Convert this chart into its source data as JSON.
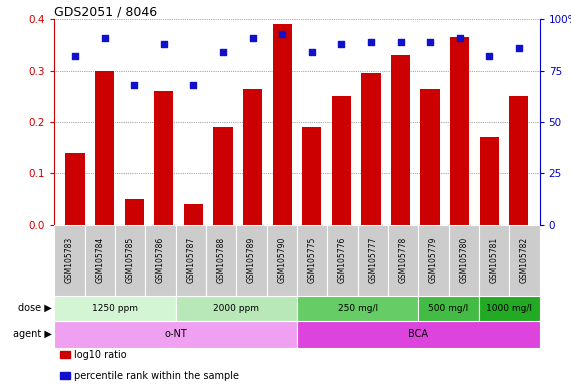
{
  "title": "GDS2051 / 8046",
  "samples": [
    "GSM105783",
    "GSM105784",
    "GSM105785",
    "GSM105786",
    "GSM105787",
    "GSM105788",
    "GSM105789",
    "GSM105790",
    "GSM105775",
    "GSM105776",
    "GSM105777",
    "GSM105778",
    "GSM105779",
    "GSM105780",
    "GSM105781",
    "GSM105782"
  ],
  "log10_ratio": [
    0.14,
    0.3,
    0.05,
    0.26,
    0.04,
    0.19,
    0.265,
    0.39,
    0.19,
    0.25,
    0.295,
    0.33,
    0.265,
    0.365,
    0.17,
    0.25
  ],
  "percentile_rank": [
    82,
    91,
    68,
    88,
    68,
    84,
    91,
    93,
    84,
    88,
    89,
    89,
    89,
    91,
    82,
    86
  ],
  "bar_color": "#cc0000",
  "dot_color": "#1111cc",
  "ylim_left": [
    0,
    0.4
  ],
  "ylim_right": [
    0,
    100
  ],
  "yticks_left": [
    0,
    0.1,
    0.2,
    0.3,
    0.4
  ],
  "yticks_right": [
    0,
    25,
    50,
    75,
    100
  ],
  "ytick_labels_right": [
    "0",
    "25",
    "50",
    "75",
    "100%"
  ],
  "dose_groups": [
    {
      "label": "1250 ppm",
      "start": 0,
      "end": 4,
      "color": "#d4f5d4"
    },
    {
      "label": "2000 ppm",
      "start": 4,
      "end": 8,
      "color": "#b8e8b8"
    },
    {
      "label": "250 mg/l",
      "start": 8,
      "end": 12,
      "color": "#66cc66"
    },
    {
      "label": "500 mg/l",
      "start": 12,
      "end": 14,
      "color": "#44bb44"
    },
    {
      "label": "1000 mg/l",
      "start": 14,
      "end": 16,
      "color": "#22aa22"
    }
  ],
  "agent_groups": [
    {
      "label": "o-NT",
      "start": 0,
      "end": 8,
      "color": "#f0a0f0"
    },
    {
      "label": "BCA",
      "start": 8,
      "end": 16,
      "color": "#dd44dd"
    }
  ],
  "legend_bar_label": "log10 ratio",
  "legend_dot_label": "percentile rank within the sample",
  "grid_color": "#555555",
  "sample_box_color": "#cccccc",
  "background_color": "#ffffff",
  "label_color_left": "#cc0000",
  "label_color_right": "#0000cc",
  "dose_label": "dose",
  "agent_label": "agent"
}
